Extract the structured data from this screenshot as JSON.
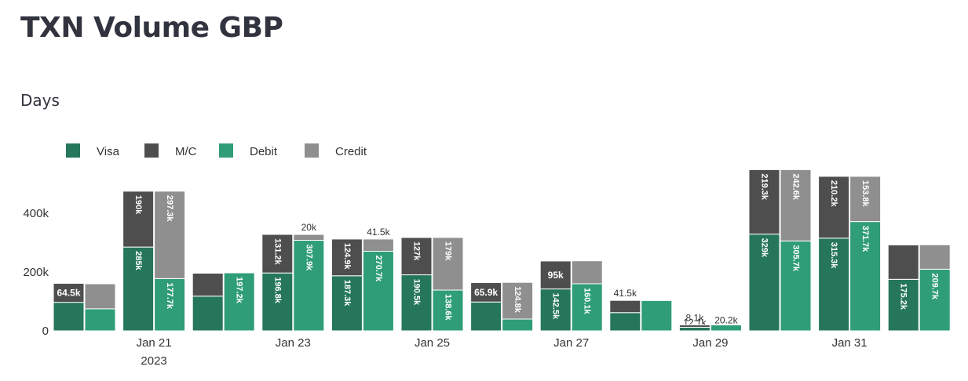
{
  "page": {
    "title": "TXN Volume GBP",
    "subtitle": "Days"
  },
  "colors": {
    "visa": "#25765a",
    "mc": "#4e4e4e",
    "debit": "#2f9d78",
    "credit": "#8f8f8f",
    "axis_text": "#333333",
    "label_dark": "#333333",
    "label_light": "#ffffff"
  },
  "chart_data": {
    "type": "bar",
    "stacked": true,
    "grouped": true,
    "legend": {
      "position": "top-left",
      "items": [
        {
          "key": "visa",
          "label": "Visa",
          "color": "#25765a"
        },
        {
          "key": "mc",
          "label": "M/C",
          "color": "#4e4e4e"
        },
        {
          "key": "debit",
          "label": "Debit",
          "color": "#2f9d78"
        },
        {
          "key": "credit",
          "label": "Credit",
          "color": "#8f8f8f"
        }
      ]
    },
    "groups": [
      {
        "name": "Visa + M/C",
        "stack": [
          {
            "series": "visa"
          },
          {
            "series": "mc"
          }
        ]
      },
      {
        "name": "Debit + Credit",
        "stack": [
          {
            "series": "debit"
          },
          {
            "series": "credit"
          }
        ]
      }
    ],
    "yticks": [
      {
        "value": 0,
        "label": "0"
      },
      {
        "value": 200000,
        "label": "200k"
      },
      {
        "value": 400000,
        "label": "400k"
      }
    ],
    "ylim": [
      0,
      540000
    ],
    "xticks": [
      {
        "day": 21,
        "label": "Jan 21",
        "sublabel": "2023"
      },
      {
        "day": 23,
        "label": "Jan 23",
        "sublabel": ""
      },
      {
        "day": 25,
        "label": "Jan 25",
        "sublabel": ""
      },
      {
        "day": 27,
        "label": "Jan 27",
        "sublabel": ""
      },
      {
        "day": 29,
        "label": "Jan 29",
        "sublabel": ""
      },
      {
        "day": 31,
        "label": "Jan 31",
        "sublabel": ""
      }
    ],
    "days": [
      {
        "date": "2023-01-20",
        "visa": 97000,
        "visa_label": "",
        "mc": 64500,
        "mc_label": "64.5k",
        "debit": 75000,
        "debit_label": "",
        "credit": 85000,
        "credit_label": ""
      },
      {
        "date": "2023-01-21",
        "visa": 285000,
        "visa_label": "285k",
        "mc": 190000,
        "mc_label": "190k",
        "debit": 177700,
        "debit_label": "177.7k",
        "credit": 297300,
        "credit_label": "297.3k"
      },
      {
        "date": "2023-01-22",
        "visa": 118000,
        "visa_label": "",
        "mc": 78000,
        "mc_label": "",
        "debit": 197200,
        "debit_label": "197.2k",
        "credit": 0,
        "credit_label": ""
      },
      {
        "date": "2023-01-23",
        "visa": 196800,
        "visa_label": "196.8k",
        "mc": 131200,
        "mc_label": "131.2k",
        "debit": 307900,
        "debit_label": "307.9k",
        "credit": 20000,
        "credit_label": "20k"
      },
      {
        "date": "2023-01-24",
        "visa": 187300,
        "visa_label": "187.3k",
        "mc": 124900,
        "mc_label": "124.9k",
        "debit": 270700,
        "debit_label": "270.7k",
        "credit": 41500,
        "credit_label": "41.5k"
      },
      {
        "date": "2023-01-25",
        "visa": 190500,
        "visa_label": "190.5k",
        "mc": 127000,
        "mc_label": "127k",
        "debit": 138600,
        "debit_label": "138.6k",
        "credit": 179000,
        "credit_label": "179k"
      },
      {
        "date": "2023-01-26",
        "visa": 98000,
        "visa_label": "",
        "mc": 65900,
        "mc_label": "65.9k",
        "debit": 40000,
        "debit_label": "",
        "credit": 124800,
        "credit_label": "124.8k"
      },
      {
        "date": "2023-01-27",
        "visa": 142500,
        "visa_label": "142.5k",
        "mc": 95000,
        "mc_label": "95k",
        "debit": 160100,
        "debit_label": "160.1k",
        "credit": 78000,
        "credit_label": ""
      },
      {
        "date": "2023-01-28",
        "visa": 62000,
        "visa_label": "",
        "mc": 41500,
        "mc_label": "41.5k",
        "debit": 103000,
        "debit_label": "",
        "credit": 0,
        "credit_label": ""
      },
      {
        "date": "2023-01-29",
        "visa": 12100,
        "visa_label": "12.1k",
        "mc": 8100,
        "mc_label": "8.1k",
        "debit": 20200,
        "debit_label": "20.2k",
        "credit": 0,
        "credit_label": ""
      },
      {
        "date": "2023-01-30",
        "visa": 329000,
        "visa_label": "329k",
        "mc": 219300,
        "mc_label": "219.3k",
        "debit": 305700,
        "debit_label": "305.7k",
        "credit": 242600,
        "credit_label": "242.6k"
      },
      {
        "date": "2023-01-31",
        "visa": 315300,
        "visa_label": "315.3k",
        "mc": 210200,
        "mc_label": "210.2k",
        "debit": 371700,
        "debit_label": "371.7k",
        "credit": 153800,
        "credit_label": "153.8k"
      },
      {
        "date": "2023-02-01",
        "visa": 175200,
        "visa_label": "175.2k",
        "mc": 117000,
        "mc_label": "",
        "debit": 209700,
        "debit_label": "209.7k",
        "credit": 83000,
        "credit_label": ""
      }
    ]
  }
}
